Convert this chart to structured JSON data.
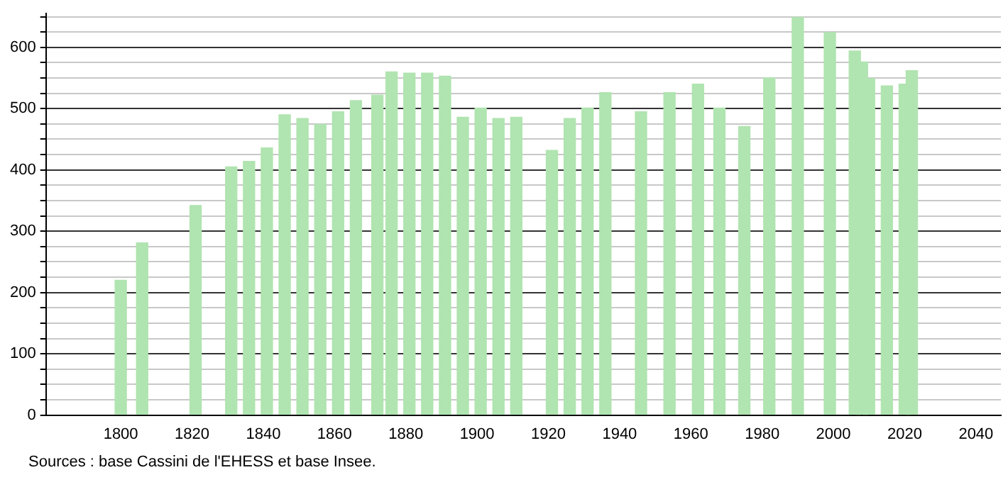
{
  "chart_data": {
    "type": "bar",
    "color": "#b0e4b0",
    "x": [
      1800,
      1806,
      1821,
      1831,
      1836,
      1841,
      1846,
      1851,
      1856,
      1861,
      1866,
      1872,
      1876,
      1881,
      1886,
      1891,
      1896,
      1901,
      1906,
      1911,
      1921,
      1926,
      1931,
      1936,
      1946,
      1954,
      1962,
      1968,
      1975,
      1982,
      1990,
      1999,
      2006,
      2008,
      2010,
      2015,
      2020,
      2022
    ],
    "values": [
      220,
      281,
      342,
      405,
      414,
      436,
      490,
      484,
      474,
      495,
      513,
      522,
      560,
      558,
      558,
      553,
      486,
      501,
      484,
      486,
      432,
      484,
      501,
      526,
      495,
      526,
      540,
      501,
      471,
      550,
      649,
      624,
      594,
      576,
      549,
      537,
      540,
      562
    ],
    "xlim": [
      1779,
      2047
    ],
    "xticks": [
      1800,
      1820,
      1840,
      1860,
      1880,
      1900,
      1920,
      1940,
      1960,
      1980,
      2000,
      2020,
      2040
    ],
    "ylim": [
      0,
      655
    ],
    "yticks": [
      0,
      {
        "value": 25,
        "label": null
      },
      {
        "value": 50,
        "label": null
      },
      {
        "value": 75,
        "label": null
      },
      100,
      {
        "value": 125,
        "label": null
      },
      {
        "value": 150,
        "label": null
      },
      {
        "value": 175,
        "label": null
      },
      200,
      {
        "value": 225,
        "label": null
      },
      {
        "value": 250,
        "label": null
      },
      {
        "value": 275,
        "label": null
      },
      300,
      {
        "value": 325,
        "label": null
      },
      {
        "value": 350,
        "label": null
      },
      {
        "value": 375,
        "label": null
      },
      400,
      {
        "value": 425,
        "label": null
      },
      {
        "value": 450,
        "label": null
      },
      {
        "value": 475,
        "label": null
      },
      500,
      {
        "value": 525,
        "label": null
      },
      {
        "value": 550,
        "label": null
      },
      {
        "value": 575,
        "label": null
      },
      600,
      {
        "value": 625,
        "label": null
      },
      {
        "value": 650,
        "label": null
      }
    ],
    "grid": "y",
    "legend": false,
    "annotations": [
      "Sources : base Cassini de l'EHESS et base Insee."
    ]
  }
}
